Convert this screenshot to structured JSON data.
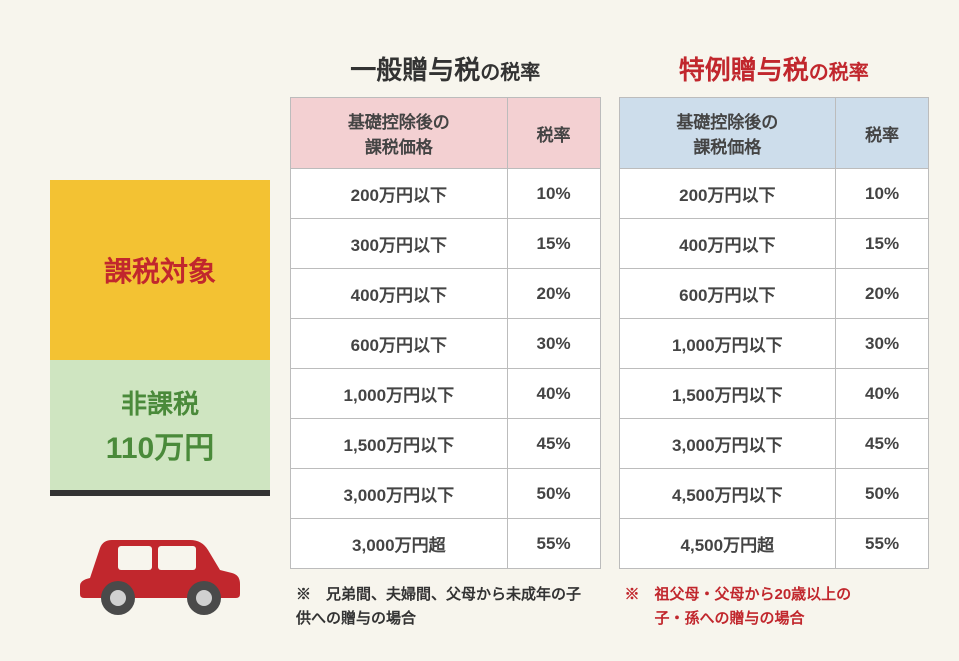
{
  "left": {
    "taxable_label": "課税対象",
    "nontax_label": "非課税",
    "nontax_amount": "110万円"
  },
  "colors": {
    "taxable_bg": "#f3c233",
    "taxable_text": "#c1272d",
    "nontax_bg": "#cfe5c1",
    "nontax_text": "#4a8a3a",
    "car_body": "#c1272d",
    "car_wheel": "#4a4a4a",
    "car_hub": "#d0d0d0",
    "th_pink": "#f3d0d2",
    "th_blue": "#cdddeb",
    "border": "#bcbcbc",
    "bg": "#f7f5ed",
    "title_red": "#c1272d",
    "text": "#444"
  },
  "tables": {
    "general": {
      "title_main": "一般贈与税",
      "title_sub": "の税率",
      "header_price": "基礎控除後の\n課税価格",
      "header_rate": "税率",
      "rows": [
        {
          "price": "200万円以下",
          "rate": "10%"
        },
        {
          "price": "300万円以下",
          "rate": "15%"
        },
        {
          "price": "400万円以下",
          "rate": "20%"
        },
        {
          "price": "600万円以下",
          "rate": "30%"
        },
        {
          "price": "1,000万円以下",
          "rate": "40%"
        },
        {
          "price": "1,500万円以下",
          "rate": "45%"
        },
        {
          "price": "3,000万円以下",
          "rate": "50%"
        },
        {
          "price": "3,000万円超",
          "rate": "55%"
        }
      ],
      "note": "※　兄弟間、夫婦間、父母から未成年の子供への贈与の場合"
    },
    "special": {
      "title_main": "特例贈与税",
      "title_sub": "の税率",
      "header_price": "基礎控除後の\n課税価格",
      "header_rate": "税率",
      "rows": [
        {
          "price": "200万円以下",
          "rate": "10%"
        },
        {
          "price": "400万円以下",
          "rate": "15%"
        },
        {
          "price": "600万円以下",
          "rate": "20%"
        },
        {
          "price": "1,000万円以下",
          "rate": "30%"
        },
        {
          "price": "1,500万円以下",
          "rate": "40%"
        },
        {
          "price": "3,000万円以下",
          "rate": "45%"
        },
        {
          "price": "4,500万円以下",
          "rate": "50%"
        },
        {
          "price": "4,500万円超",
          "rate": "55%"
        }
      ],
      "note": "※　祖父母・父母から20歳以上の\n　　子・孫への贈与の場合"
    }
  }
}
